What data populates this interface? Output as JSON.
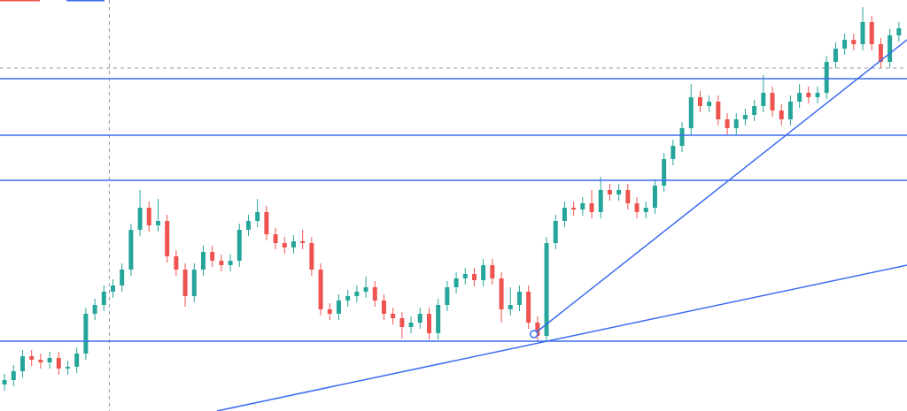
{
  "chart_data": {
    "type": "candlestick",
    "xlim": [
      -0.5,
      99.9
    ],
    "ylim": [
      0,
      465
    ],
    "up_color": "#26a69a",
    "down_color": "#ef5350",
    "line_color": "#3b6cf0",
    "open": [
      30,
      35,
      45,
      62,
      58,
      55,
      60,
      48,
      50,
      65,
      110,
      120,
      135,
      142,
      160,
      205,
      230,
      210,
      215,
      175,
      160,
      130,
      160,
      180,
      170,
      165,
      170,
      205,
      215,
      225,
      200,
      190,
      185,
      192,
      190,
      160,
      115,
      110,
      125,
      130,
      135,
      140,
      125,
      110,
      105,
      95,
      100,
      110,
      88,
      120,
      140,
      150,
      155,
      148,
      165,
      150,
      115,
      120,
      135,
      100,
      85,
      190,
      215,
      230,
      228,
      235,
      225,
      250,
      245,
      250,
      235,
      225,
      230,
      255,
      285,
      300,
      320,
      355,
      345,
      350,
      330,
      320,
      330,
      335,
      345,
      360,
      340,
      330,
      350,
      360,
      355,
      360,
      395,
      410,
      420,
      415,
      440,
      415,
      395,
      425
    ],
    "high": [
      42,
      52,
      69,
      69,
      65,
      67,
      67,
      57,
      72,
      117,
      127,
      142,
      149,
      167,
      212,
      250,
      237,
      240,
      222,
      182,
      167,
      167,
      187,
      187,
      177,
      177,
      212,
      222,
      240,
      232,
      207,
      197,
      199,
      205,
      197,
      167,
      122,
      132,
      137,
      142,
      152,
      147,
      132,
      117,
      112,
      107,
      117,
      117,
      127,
      147,
      157,
      162,
      162,
      172,
      172,
      157,
      140,
      142,
      142,
      107,
      197,
      222,
      237,
      237,
      242,
      250,
      265,
      257,
      257,
      257,
      242,
      237,
      262,
      292,
      307,
      327,
      370,
      362,
      357,
      357,
      337,
      337,
      342,
      352,
      380,
      367,
      347,
      357,
      370,
      367,
      367,
      402,
      417,
      427,
      427,
      457,
      447,
      422,
      432,
      440
    ],
    "low": [
      23,
      28,
      38,
      51,
      48,
      48,
      41,
      41,
      43,
      58,
      103,
      113,
      128,
      135,
      153,
      198,
      203,
      203,
      168,
      153,
      118,
      123,
      153,
      163,
      158,
      158,
      163,
      198,
      208,
      193,
      183,
      178,
      178,
      183,
      153,
      108,
      103,
      103,
      118,
      123,
      128,
      118,
      103,
      98,
      82,
      88,
      93,
      81,
      81,
      113,
      133,
      143,
      141,
      141,
      143,
      100,
      108,
      113,
      93,
      78,
      78,
      183,
      208,
      221,
      221,
      218,
      218,
      238,
      238,
      228,
      218,
      218,
      223,
      248,
      278,
      293,
      313,
      338,
      338,
      323,
      313,
      313,
      323,
      328,
      338,
      333,
      323,
      323,
      343,
      348,
      348,
      353,
      388,
      403,
      408,
      408,
      408,
      388,
      388,
      418
    ],
    "close": [
      35,
      45,
      62,
      58,
      55,
      60,
      48,
      50,
      65,
      110,
      120,
      135,
      142,
      160,
      205,
      230,
      210,
      215,
      175,
      160,
      130,
      160,
      180,
      170,
      165,
      170,
      205,
      215,
      225,
      200,
      190,
      185,
      192,
      190,
      160,
      115,
      110,
      125,
      130,
      135,
      140,
      125,
      110,
      105,
      95,
      100,
      110,
      88,
      120,
      140,
      150,
      155,
      148,
      165,
      150,
      115,
      120,
      135,
      100,
      85,
      190,
      215,
      230,
      228,
      235,
      225,
      250,
      245,
      250,
      235,
      225,
      230,
      255,
      285,
      300,
      320,
      355,
      345,
      350,
      330,
      320,
      330,
      335,
      345,
      360,
      340,
      330,
      350,
      360,
      355,
      360,
      395,
      410,
      420,
      415,
      440,
      415,
      395,
      425,
      433
    ],
    "levels": [
      376,
      312,
      261,
      79
    ],
    "trendlines": [
      {
        "x": [
          58.6,
          99.9
        ],
        "y": [
          87,
          420
        ]
      },
      {
        "x": [
          23.5,
          99.9
        ],
        "y": [
          0,
          165
        ]
      }
    ],
    "crosshair": {
      "x": 11.6,
      "y": 388
    }
  }
}
